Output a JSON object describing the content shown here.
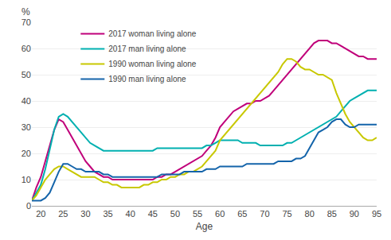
{
  "chart_data": {
    "type": "line",
    "x": [
      18,
      19,
      20,
      21,
      22,
      23,
      24,
      25,
      26,
      27,
      28,
      29,
      30,
      31,
      32,
      33,
      34,
      35,
      36,
      37,
      38,
      39,
      40,
      41,
      42,
      43,
      44,
      45,
      46,
      47,
      48,
      49,
      50,
      51,
      52,
      53,
      54,
      55,
      56,
      57,
      58,
      59,
      60,
      61,
      62,
      63,
      64,
      65,
      66,
      67,
      68,
      69,
      70,
      71,
      72,
      73,
      74,
      75,
      76,
      77,
      78,
      79,
      80,
      81,
      82,
      83,
      84,
      85,
      86,
      87,
      88,
      89,
      90,
      91,
      92,
      93,
      94,
      95
    ],
    "series": [
      {
        "name": "2017 woman living alone",
        "color": "#c0007a",
        "values": [
          2,
          7,
          11,
          17,
          23,
          29,
          33,
          32,
          29,
          26,
          23,
          20,
          17,
          15,
          13,
          12,
          11,
          11,
          10,
          10,
          10,
          10,
          10,
          10,
          10,
          10,
          10,
          10,
          11,
          11,
          12,
          12,
          13,
          14,
          15,
          16,
          17,
          18,
          19,
          21,
          23,
          26,
          30,
          32,
          34,
          36,
          37,
          38,
          39,
          39,
          40,
          40,
          41,
          42,
          44,
          46,
          48,
          50,
          52,
          54,
          56,
          58,
          60,
          62,
          63,
          63,
          63,
          62,
          62,
          61,
          60,
          59,
          58,
          57,
          57,
          56,
          56,
          56
        ]
      },
      {
        "name": "2017 man living alone",
        "color": "#00b0b0",
        "values": [
          2,
          5,
          8,
          14,
          22,
          29,
          34,
          35,
          34,
          32,
          30,
          28,
          26,
          24,
          23,
          22,
          21,
          21,
          21,
          21,
          21,
          21,
          21,
          21,
          21,
          21,
          21,
          21,
          22,
          22,
          22,
          22,
          22,
          22,
          22,
          22,
          22,
          22,
          22,
          23,
          23,
          24,
          25,
          25,
          25,
          25,
          25,
          24,
          24,
          24,
          24,
          23,
          23,
          23,
          23,
          23,
          23,
          24,
          24,
          25,
          26,
          27,
          28,
          29,
          30,
          31,
          32,
          33,
          34,
          36,
          38,
          40,
          41,
          42,
          43,
          44,
          44,
          44
        ]
      },
      {
        "name": "1990 woman living alone",
        "color": "#c8c800",
        "values": [
          2,
          4,
          7,
          10,
          12,
          14,
          15,
          15,
          14,
          13,
          12,
          11,
          11,
          11,
          11,
          10,
          9,
          9,
          8,
          8,
          7,
          7,
          7,
          7,
          7,
          8,
          8,
          9,
          9,
          10,
          10,
          11,
          11,
          12,
          12,
          13,
          13,
          14,
          15,
          17,
          19,
          21,
          25,
          27,
          29,
          31,
          33,
          35,
          37,
          39,
          41,
          43,
          45,
          47,
          49,
          51,
          54,
          56,
          56,
          55,
          53,
          52,
          52,
          51,
          50,
          50,
          49,
          48,
          43,
          39,
          35,
          32,
          30,
          28,
          26,
          25,
          25,
          26
        ]
      },
      {
        "name": "1990 man living alone",
        "color": "#1464aa",
        "values": [
          2,
          2,
          2,
          3,
          5,
          9,
          13,
          16,
          16,
          15,
          14,
          14,
          13,
          13,
          13,
          13,
          12,
          12,
          11,
          11,
          11,
          11,
          11,
          11,
          11,
          11,
          11,
          11,
          11,
          12,
          12,
          12,
          12,
          12,
          13,
          13,
          13,
          13,
          13,
          14,
          14,
          14,
          15,
          15,
          15,
          15,
          15,
          15,
          16,
          16,
          16,
          16,
          16,
          16,
          16,
          17,
          17,
          17,
          17,
          18,
          18,
          19,
          22,
          25,
          28,
          29,
          30,
          32,
          33,
          33,
          31,
          30,
          30,
          31,
          31,
          31,
          31,
          31
        ]
      }
    ],
    "xlabel": "Age",
    "ylabel": "%",
    "xlim": [
      18,
      95
    ],
    "ylim": [
      0,
      70
    ],
    "xticks": [
      20,
      25,
      30,
      35,
      40,
      45,
      50,
      55,
      60,
      65,
      70,
      75,
      80,
      85,
      90,
      95
    ],
    "yticks": [
      0,
      10,
      20,
      30,
      40,
      50,
      60,
      70
    ],
    "grid": true,
    "legend": "upper left"
  }
}
